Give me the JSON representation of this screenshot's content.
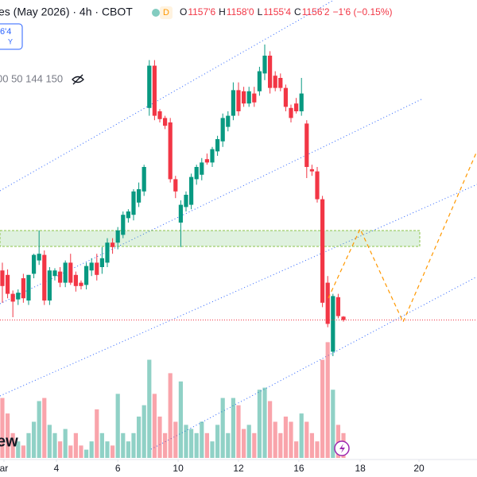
{
  "header": {
    "symbol": "es (May 2026) · 4h · CBOT",
    "badge": "D",
    "ohlc": [
      {
        "label": "O",
        "value": "1157'6"
      },
      {
        "label": "H",
        "value": "1158'0"
      },
      {
        "label": "L",
        "value": "1155'4"
      },
      {
        "label": "C",
        "value": "1156'2"
      }
    ],
    "change": "−1'6 (−0.15%)"
  },
  "price_box": {
    "price": "6'4",
    "sub": "Y"
  },
  "indicators": "00 50 144 150",
  "watermark": "ew",
  "chart_data": {
    "type": "candlestick",
    "x": [
      0,
      1,
      2,
      3,
      4,
      5,
      6,
      7,
      8,
      9,
      10,
      11,
      12,
      13,
      14,
      15,
      16,
      17,
      18,
      19,
      20,
      21,
      22,
      23,
      24,
      25,
      26,
      27,
      28,
      29,
      30,
      31,
      32,
      33,
      34,
      35,
      36,
      37,
      38,
      39,
      40,
      41,
      42,
      43,
      44,
      45,
      46,
      47,
      48,
      49,
      50,
      51,
      52,
      53,
      54,
      55,
      56,
      57,
      58,
      59,
      60,
      61,
      62,
      63,
      64,
      65
    ],
    "open": [
      1178.5,
      1176.5,
      1168,
      1165.5,
      1175,
      1165,
      1177,
      1183,
      1185.5,
      1165,
      1176,
      1178,
      1173,
      1182,
      1176.5,
      1173,
      1172,
      1178.5,
      1182,
      1180,
      1182,
      1191,
      1191,
      1194.5,
      1202,
      1203.5,
      1209,
      1214,
      1251.5,
      1270.5,
      1250,
      1247,
      1245,
      1219.5,
      1200,
      1207,
      1208,
      1219.5,
      1221.5,
      1228.5,
      1227,
      1232,
      1236.5,
      1243,
      1248,
      1259.5,
      1259,
      1253.5,
      1258,
      1259,
      1267,
      1275,
      1266,
      1265,
      1260.5,
      1251.5,
      1253.5,
      1250,
      1244.5,
      1224,
      1223,
      1210.5,
      1173,
      1142,
      1166.5,
      1157.75
    ],
    "high": [
      1182,
      1179,
      1169.5,
      1170,
      1177,
      1176.5,
      1186,
      1196.5,
      1187.5,
      1180,
      1179.5,
      1180,
      1183,
      1186,
      1178,
      1174,
      1182,
      1184,
      1186,
      1189,
      1193,
      1193,
      1198,
      1205,
      1206,
      1215,
      1218,
      1226,
      1273,
      1273,
      1251,
      1248,
      1247,
      1221,
      1210,
      1214,
      1222,
      1226,
      1229,
      1231,
      1234,
      1239,
      1249,
      1250,
      1263,
      1263,
      1261,
      1261,
      1261,
      1270,
      1280,
      1277,
      1268,
      1267,
      1262,
      1253,
      1256,
      1265,
      1246,
      1226,
      1225,
      1212,
      1176,
      1168,
      1168,
      1158
    ],
    "low": [
      1164,
      1166,
      1157.5,
      1163,
      1164,
      1163,
      1175,
      1181,
      1163,
      1163,
      1174,
      1171,
      1171,
      1172,
      1169,
      1170,
      1170,
      1176,
      1174,
      1177,
      1180,
      1186,
      1188,
      1193,
      1200,
      1201,
      1207,
      1212,
      1248,
      1246,
      1245,
      1242,
      1218,
      1211,
      1189,
      1205,
      1206,
      1217,
      1219,
      1226,
      1225,
      1230,
      1234,
      1241,
      1246,
      1248,
      1252,
      1252,
      1252,
      1257,
      1264,
      1258,
      1259,
      1259,
      1250,
      1245,
      1249,
      1248,
      1220,
      1221,
      1209,
      1162,
      1153,
      1140,
      1157,
      1155.5
    ],
    "close": [
      1171.5,
      1168,
      1164.5,
      1168.5,
      1166,
      1176.5,
      1185.5,
      1186,
      1165,
      1178.5,
      1178.5,
      1173,
      1182,
      1173,
      1171.5,
      1171.5,
      1180.5,
      1182,
      1176.5,
      1184,
      1191,
      1189,
      1196.5,
      1203.5,
      1205,
      1214,
      1215,
      1225,
      1270.5,
      1248,
      1246.5,
      1243.5,
      1219.5,
      1214,
      1208,
      1212.5,
      1220.5,
      1225,
      1227,
      1227,
      1233,
      1237.5,
      1247,
      1248,
      1259.5,
      1250,
      1253.5,
      1259,
      1254,
      1268,
      1275,
      1260.5,
      1260.5,
      1260.5,
      1252,
      1247,
      1250,
      1258,
      1225,
      1223,
      1210.5,
      1164,
      1154.5,
      1167,
      1158,
      1156.25
    ],
    "volume": [
      58,
      43,
      24,
      16,
      12,
      24,
      35,
      55,
      58,
      32,
      24,
      16,
      28,
      12,
      24,
      12,
      8,
      16,
      47,
      24,
      16,
      12,
      62,
      24,
      16,
      24,
      40,
      51,
      95,
      62,
      40,
      24,
      82,
      35,
      74,
      32,
      28,
      24,
      35,
      24,
      16,
      32,
      58,
      24,
      58,
      51,
      28,
      32,
      24,
      66,
      68,
      55,
      35,
      24,
      40,
      35,
      16,
      43,
      35,
      24,
      16,
      95,
      112,
      66,
      32,
      24
    ],
    "last_price": 1156.25,
    "ylim": [
      1100,
      1300
    ],
    "volume_lim": [
      0,
      100
    ],
    "xlim": [
      -0.45,
      90.45
    ],
    "xticks": [
      {
        "value": 0.3,
        "label": "ar"
      },
      {
        "value": 10.3,
        "label": "4"
      },
      {
        "value": 22,
        "label": "6"
      },
      {
        "value": 33.5,
        "label": "10"
      },
      {
        "value": 45,
        "label": "12"
      },
      {
        "value": 56.5,
        "label": "16"
      },
      {
        "value": 68.2,
        "label": "18"
      },
      {
        "value": 79.4,
        "label": "20"
      }
    ],
    "up_color": "#089981",
    "down_color": "#f23645"
  }
}
